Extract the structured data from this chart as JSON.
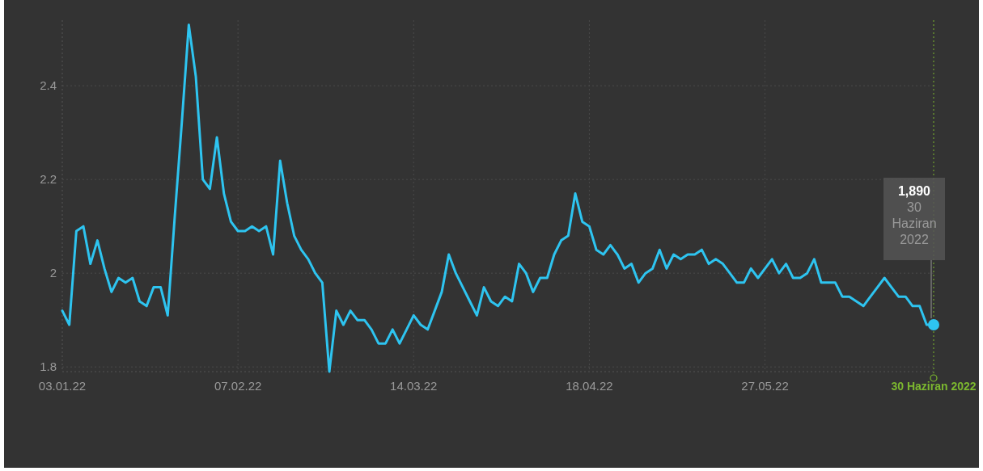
{
  "chart_data": {
    "type": "line",
    "categories": [
      "03.01.22",
      null,
      null,
      null,
      null,
      null,
      null,
      null,
      null,
      null,
      null,
      null,
      null,
      null,
      null,
      null,
      null,
      null,
      null,
      null,
      null,
      null,
      null,
      null,
      null,
      "07.02.22",
      null,
      null,
      null,
      null,
      null,
      null,
      null,
      null,
      null,
      null,
      null,
      null,
      null,
      null,
      null,
      null,
      null,
      null,
      null,
      null,
      null,
      null,
      null,
      null,
      "14.03.22",
      null,
      null,
      null,
      null,
      null,
      null,
      null,
      null,
      null,
      null,
      null,
      null,
      null,
      null,
      null,
      null,
      null,
      null,
      null,
      null,
      null,
      null,
      null,
      null,
      "18.04.22",
      null,
      null,
      null,
      null,
      null,
      null,
      null,
      null,
      null,
      null,
      null,
      null,
      null,
      null,
      null,
      null,
      null,
      null,
      null,
      null,
      null,
      null,
      null,
      null,
      "27.05.22",
      null,
      null,
      null,
      null,
      null,
      null,
      null,
      null,
      null,
      null,
      null,
      null,
      null,
      null,
      null,
      null,
      null,
      null,
      null,
      null,
      null,
      null,
      null,
      "30 Haziran 2022"
    ],
    "series": [
      {
        "color": "#2ec4f0",
        "values": [
          1.92,
          1.89,
          2.09,
          2.1,
          2.02,
          2.07,
          2.01,
          1.96,
          1.99,
          1.98,
          1.99,
          1.94,
          1.93,
          1.97,
          1.97,
          1.91,
          2.12,
          2.32,
          2.53,
          2.42,
          2.2,
          2.18,
          2.29,
          2.17,
          2.11,
          2.09,
          2.09,
          2.1,
          2.09,
          2.1,
          2.04,
          2.24,
          2.15,
          2.08,
          2.05,
          2.03,
          2.0,
          1.98,
          1.79,
          1.92,
          1.89,
          1.92,
          1.9,
          1.9,
          1.88,
          1.85,
          1.85,
          1.88,
          1.85,
          1.88,
          1.91,
          1.89,
          1.88,
          1.92,
          1.96,
          2.04,
          2.0,
          1.97,
          1.94,
          1.91,
          1.97,
          1.94,
          1.93,
          1.95,
          1.94,
          2.02,
          2.0,
          1.96,
          1.99,
          1.99,
          2.04,
          2.07,
          2.08,
          2.17,
          2.11,
          2.1,
          2.05,
          2.04,
          2.06,
          2.04,
          2.01,
          2.02,
          1.98,
          2.0,
          2.01,
          2.05,
          2.01,
          2.04,
          2.03,
          2.04,
          2.04,
          2.05,
          2.02,
          2.03,
          2.02,
          2.0,
          1.98,
          1.98,
          2.01,
          1.99,
          2.01,
          2.03,
          2.0,
          2.02,
          1.99,
          1.99,
          2.0,
          2.03,
          1.98,
          1.98,
          1.98,
          1.95,
          1.95,
          1.94,
          1.93,
          1.95,
          1.97,
          1.99,
          1.97,
          1.95,
          1.95,
          1.93,
          1.93,
          1.89,
          1.89
        ]
      }
    ],
    "ylim": [
      1.79,
      2.54
    ],
    "yticks": [
      1.8,
      2,
      2.2,
      2.4
    ],
    "grid": true,
    "marker": "none",
    "line_style": "solid",
    "ref_lines": [
      {
        "axis": "x",
        "value": "30 Haziran 2022",
        "color": "#7cb82f",
        "line_style": "dotted"
      }
    ],
    "annotations": [
      {
        "text": "1,890\n30\nHaziran\n2022",
        "x": "30 Haziran 2022",
        "y": 1.89
      }
    ]
  }
}
